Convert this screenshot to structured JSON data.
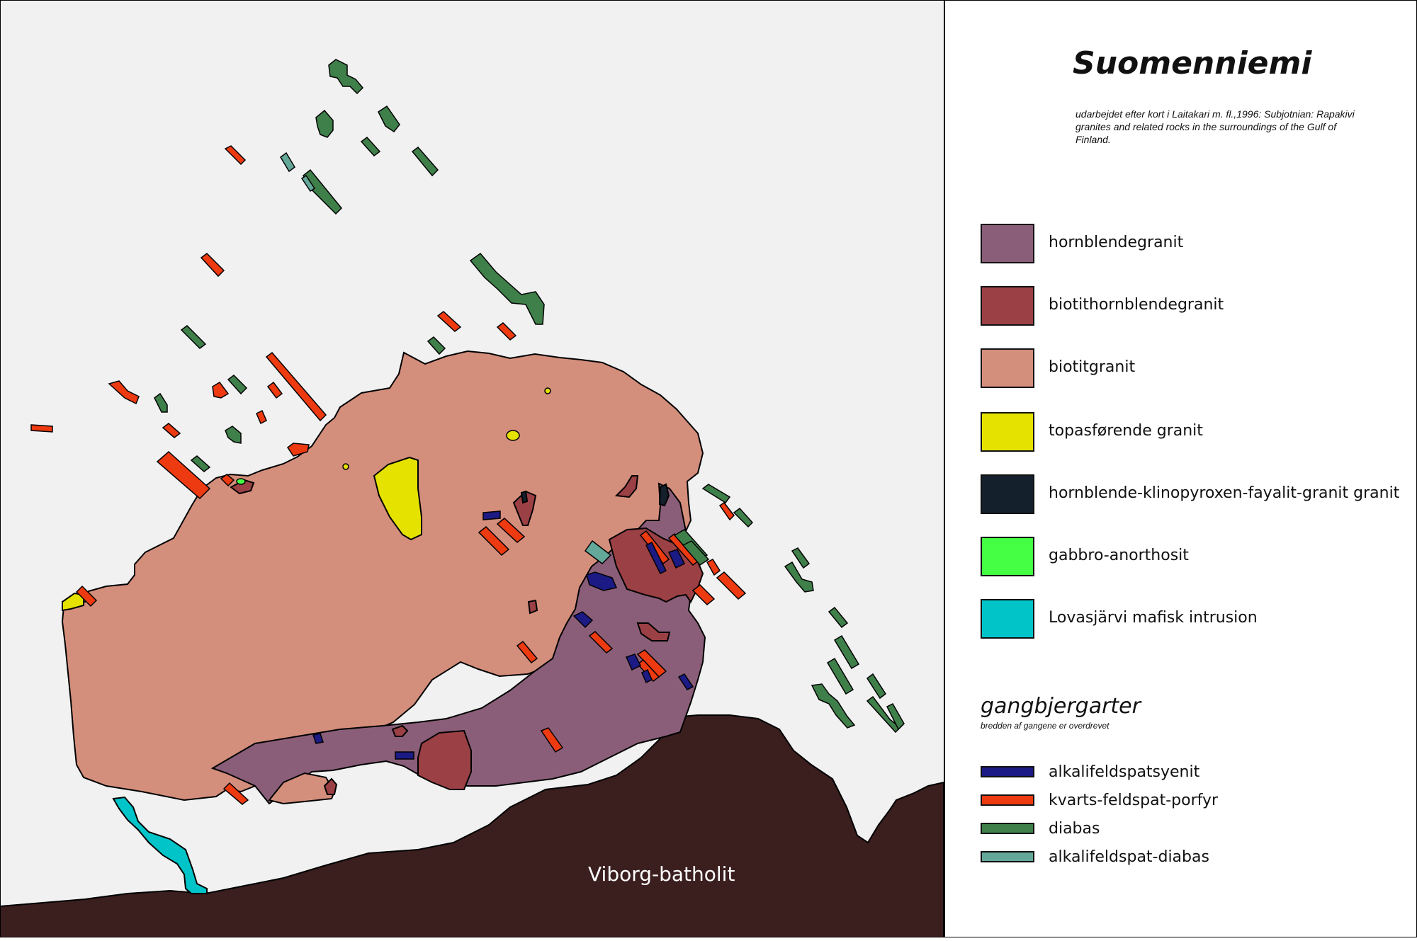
{
  "title": "Suomenniemi",
  "source": "udarbejdet efter kort i Laitakari m. fl.,1996: Subjotnian: Rapakivi granites and related rocks in the surroundings of the Gulf of Finland.",
  "map": {
    "batholit_label": "Viborg-batholit",
    "colors": {
      "background": "#f1f1f1",
      "batholit": "#3b1e1e",
      "hornblendegranit": "#8a5e78",
      "biotithornblendegranit": "#9b4044",
      "biotitgranit": "#d48e7c",
      "topas": "#e6e200",
      "gabbro": "#44ff44",
      "lovasjarvi": "#00c4c8",
      "alkalifeldspatsyenit": "#1c1a84",
      "kvarts": "#ee3a10",
      "diabas": "#3f7f4a",
      "alkalifeldspat_diabas": "#64a89a"
    }
  },
  "legend": {
    "units": [
      {
        "label": "hornblendegranit",
        "color": "#8a5e78"
      },
      {
        "label": "biotithornblendegranit",
        "color": "#9b4044"
      },
      {
        "label": "biotitgranit",
        "color": "#d48e7c"
      },
      {
        "label": "topasførende granit",
        "color": "#e6e200"
      },
      {
        "label": "hornblende-klinopyroxen-fayalit-granit granit",
        "color": "#14202c"
      },
      {
        "label": "gabbro-anorthosit",
        "color": "#44ff44"
      },
      {
        "label": "Lovasjärvi mafisk intrusion",
        "color": "#00c4c8"
      }
    ],
    "dikes_title": "gangbjergarter",
    "dikes_note": "bredden af gangene er overdrevet",
    "dikes": [
      {
        "label": "alkalifeldspatsyenit",
        "color": "#1c1a84"
      },
      {
        "label": "kvarts-feldspat-porfyr",
        "color": "#ee3a10"
      },
      {
        "label": "diabas",
        "color": "#3f7f4a"
      },
      {
        "label": "alkalifeldspat-diabas",
        "color": "#64a89a"
      }
    ]
  }
}
